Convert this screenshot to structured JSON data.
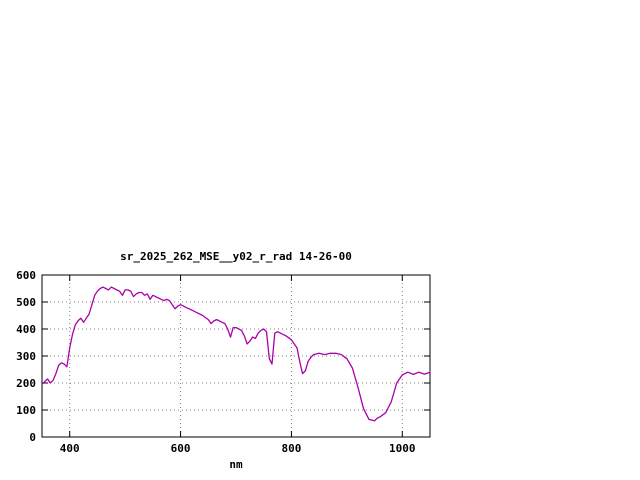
{
  "chart_data": {
    "type": "line",
    "title": "sr_2025_262_MSE__y02_r_rad 14-26-00",
    "xlabel": "nm",
    "ylabel": "",
    "xlim": [
      350,
      1050
    ],
    "ylim": [
      0,
      600
    ],
    "x_ticks": [
      400,
      600,
      800,
      1000
    ],
    "y_ticks": [
      0,
      100,
      200,
      300,
      400,
      500,
      600
    ],
    "grid": true,
    "legend": "none",
    "line_color": "#aa00aa",
    "border_color": "#000000",
    "grid_color": "#808080",
    "series": [
      {
        "name": "sr_2025_262_MSE__y02_r_rad",
        "x": [
          350,
          355,
          360,
          365,
          370,
          375,
          380,
          385,
          390,
          395,
          400,
          405,
          410,
          415,
          420,
          425,
          430,
          435,
          440,
          445,
          450,
          455,
          460,
          465,
          470,
          475,
          480,
          485,
          490,
          495,
          500,
          505,
          510,
          515,
          520,
          525,
          530,
          535,
          540,
          545,
          550,
          555,
          560,
          565,
          570,
          575,
          580,
          585,
          590,
          595,
          600,
          610,
          620,
          630,
          640,
          650,
          655,
          660,
          665,
          670,
          675,
          680,
          685,
          690,
          695,
          700,
          705,
          710,
          715,
          720,
          725,
          730,
          735,
          740,
          745,
          750,
          755,
          760,
          765,
          770,
          775,
          780,
          790,
          800,
          805,
          810,
          815,
          820,
          825,
          830,
          835,
          840,
          850,
          860,
          870,
          880,
          890,
          900,
          910,
          920,
          930,
          940,
          950,
          955,
          960,
          970,
          980,
          990,
          1000,
          1010,
          1020,
          1030,
          1040,
          1050
        ],
        "y": [
          195,
          205,
          215,
          200,
          210,
          235,
          265,
          275,
          270,
          260,
          330,
          380,
          415,
          430,
          440,
          425,
          440,
          455,
          490,
          525,
          540,
          550,
          555,
          550,
          545,
          555,
          550,
          545,
          540,
          525,
          545,
          545,
          540,
          520,
          530,
          535,
          535,
          525,
          530,
          510,
          525,
          520,
          515,
          510,
          505,
          510,
          505,
          490,
          475,
          485,
          490,
          480,
          470,
          460,
          450,
          435,
          420,
          430,
          435,
          430,
          425,
          420,
          400,
          370,
          405,
          405,
          400,
          395,
          375,
          345,
          355,
          370,
          365,
          385,
          395,
          400,
          390,
          290,
          270,
          385,
          390,
          385,
          375,
          360,
          345,
          330,
          280,
          235,
          245,
          280,
          295,
          305,
          310,
          305,
          310,
          310,
          305,
          290,
          255,
          185,
          105,
          65,
          60,
          70,
          75,
          90,
          130,
          200,
          230,
          240,
          232,
          240,
          233,
          240
        ]
      }
    ]
  }
}
